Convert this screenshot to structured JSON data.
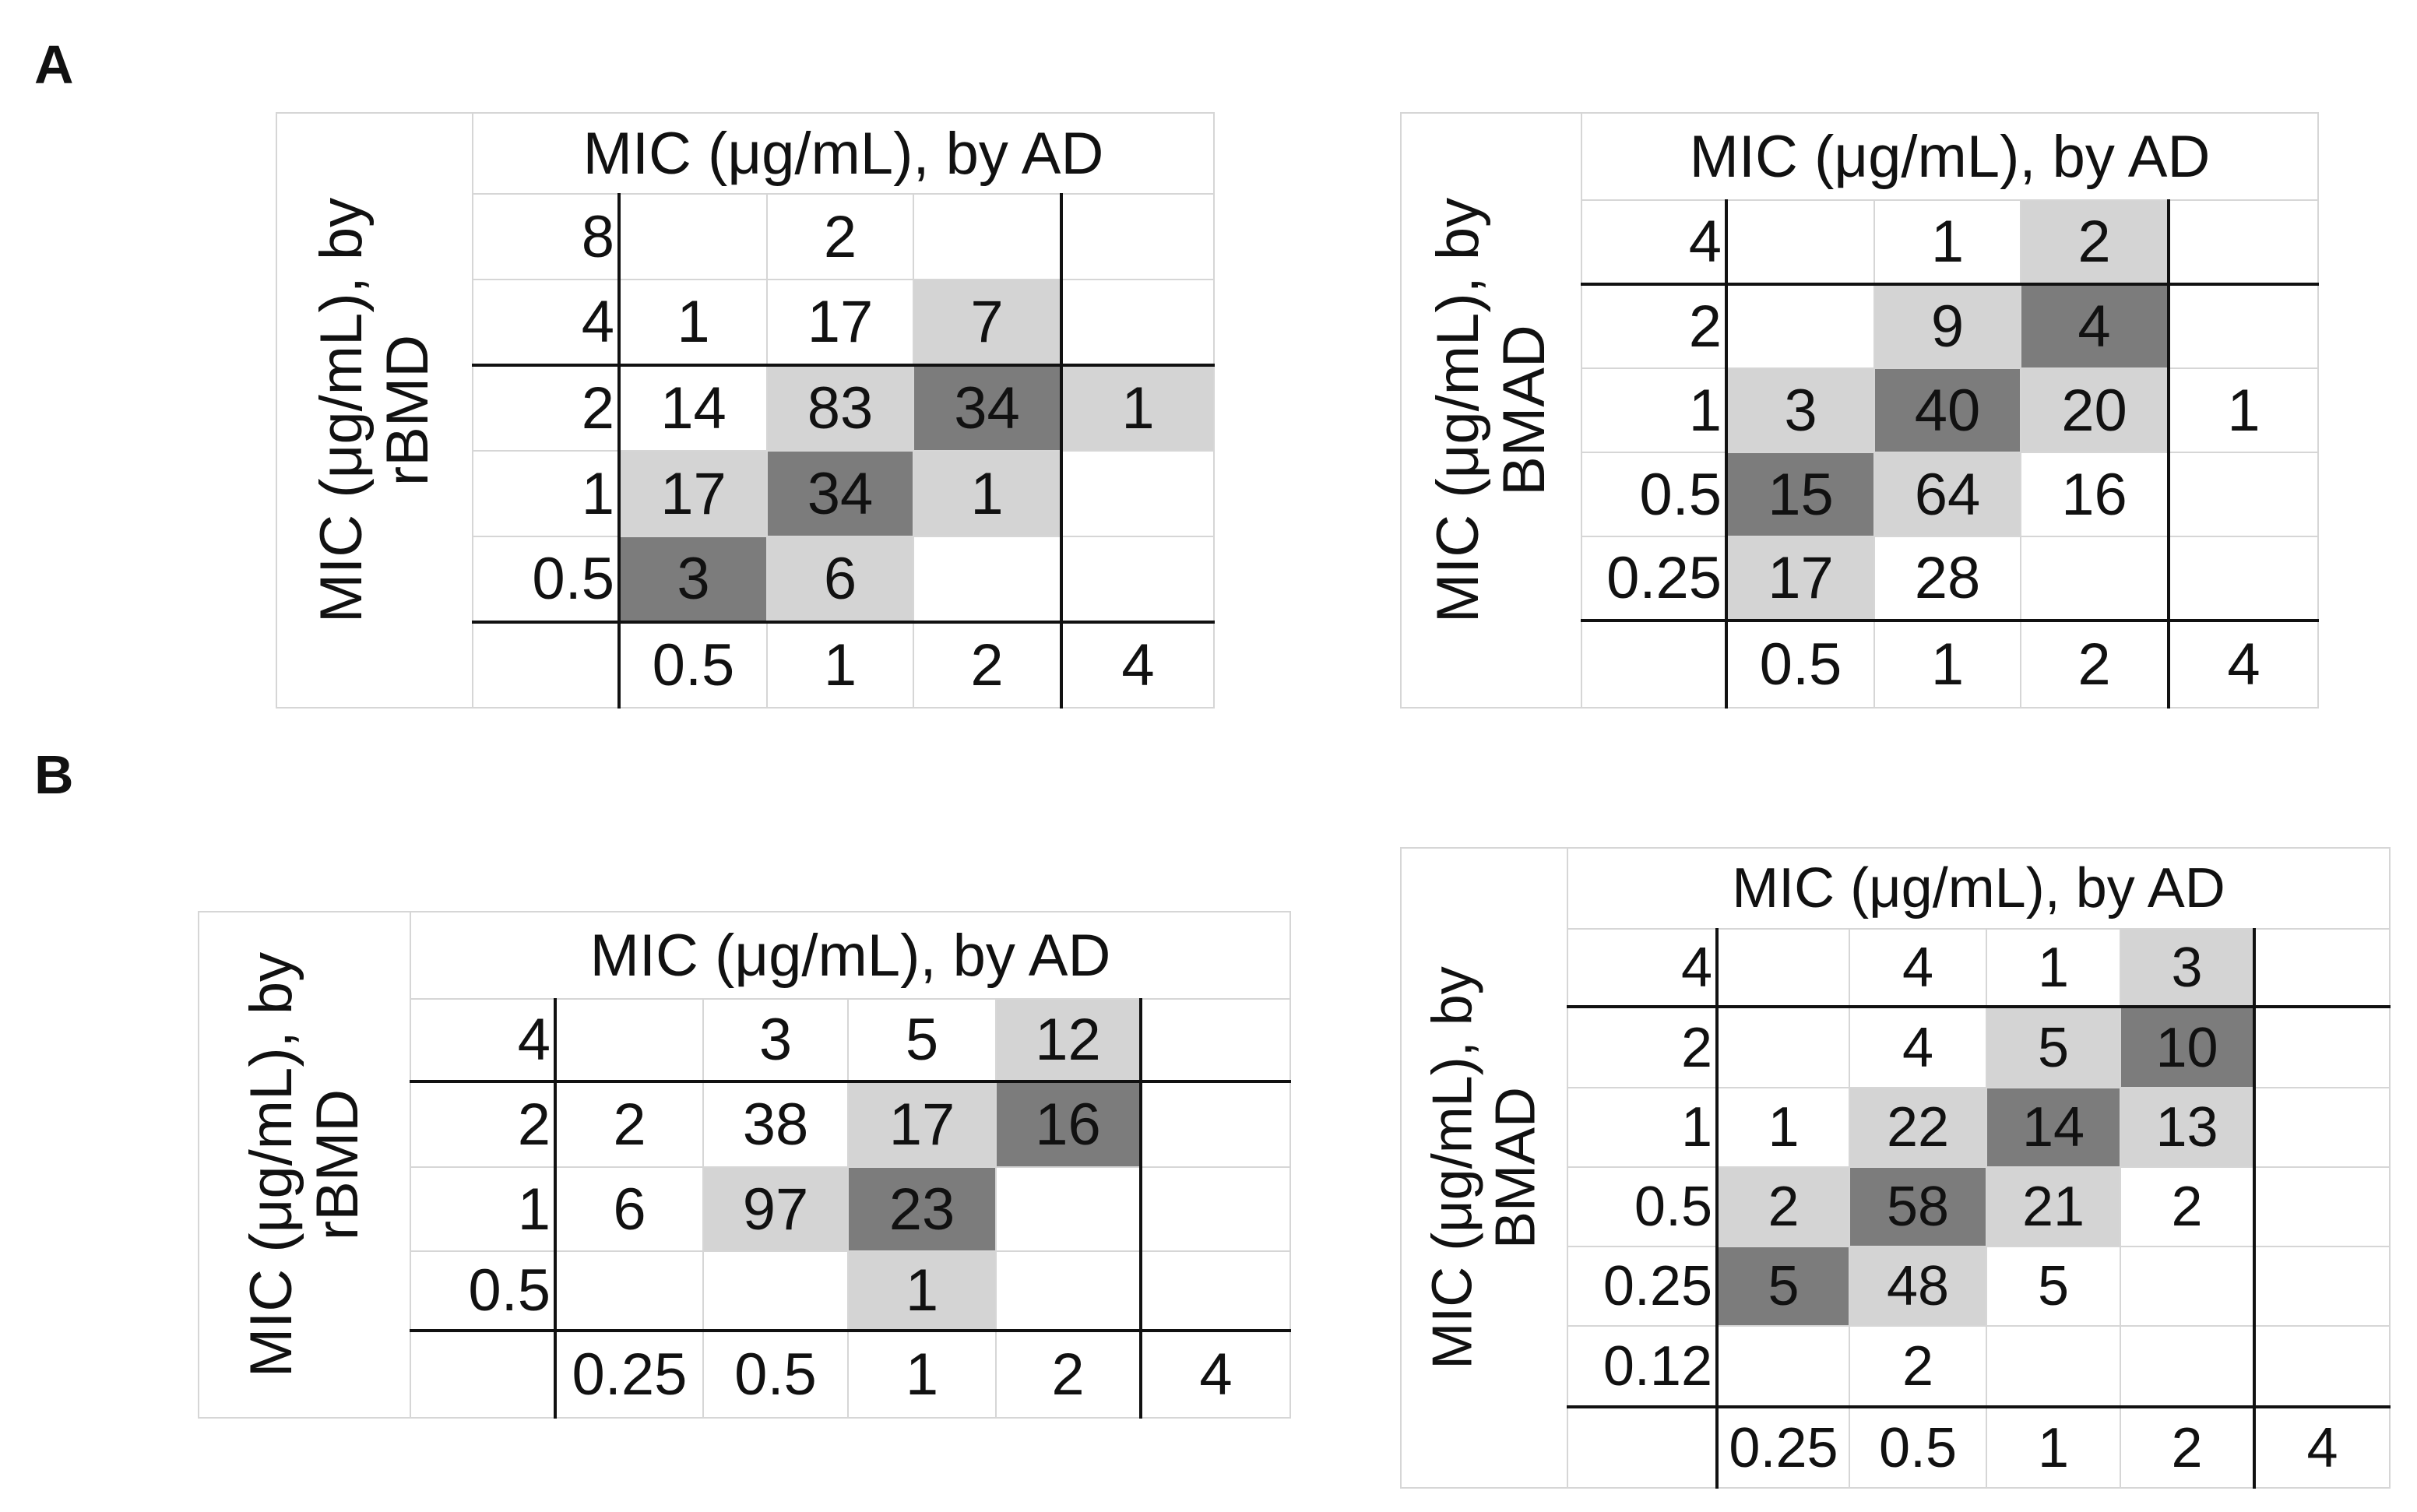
{
  "figure": {
    "panel_a": "A",
    "panel_b": "B",
    "colors": {
      "light_shade": "#d4d4d4",
      "dark_shade": "#7c7c7c",
      "grid": "#d6d6d6",
      "rule": "#111111"
    },
    "tables": [
      {
        "x_title": "MIC (μg/mL), by AD",
        "y_title": "MIC (μg/mL), by rBMD",
        "x_values": [
          "0.5",
          "1",
          "2",
          "4"
        ],
        "rows": [
          {
            "label": "8",
            "cells": [
              "",
              "2",
              "",
              ""
            ]
          },
          {
            "label": "4",
            "cells": [
              "1",
              "17",
              "7",
              ""
            ]
          },
          {
            "label": "2",
            "cells": [
              "14",
              "83",
              "34",
              "1"
            ]
          },
          {
            "label": "1",
            "cells": [
              "17",
              "34",
              "1",
              ""
            ]
          },
          {
            "label": "0.5",
            "cells": [
              "3",
              "6",
              "",
              ""
            ]
          }
        ]
      },
      {
        "x_title": "MIC (μg/mL), by AD",
        "y_title": "MIC (μg/mL), by BMAD",
        "x_values": [
          "0.5",
          "1",
          "2",
          "4"
        ],
        "rows": [
          {
            "label": "4",
            "cells": [
              "",
              "1",
              "2",
              ""
            ]
          },
          {
            "label": "2",
            "cells": [
              "",
              "9",
              "4",
              ""
            ]
          },
          {
            "label": "1",
            "cells": [
              "3",
              "40",
              "20",
              "1"
            ]
          },
          {
            "label": "0.5",
            "cells": [
              "15",
              "64",
              "16",
              ""
            ]
          },
          {
            "label": "0.25",
            "cells": [
              "17",
              "28",
              "",
              ""
            ]
          }
        ]
      },
      {
        "x_title": "MIC (μg/mL), by AD",
        "y_title": "MIC (μg/mL), by rBMD",
        "x_values": [
          "0.25",
          "0.5",
          "1",
          "2",
          "4"
        ],
        "rows": [
          {
            "label": "4",
            "cells": [
              "",
              "3",
              "5",
              "12",
              ""
            ]
          },
          {
            "label": "2",
            "cells": [
              "2",
              "38",
              "17",
              "16",
              ""
            ]
          },
          {
            "label": "1",
            "cells": [
              "6",
              "97",
              "23",
              "",
              ""
            ]
          },
          {
            "label": "0.5",
            "cells": [
              "",
              "",
              "1",
              "",
              ""
            ]
          }
        ]
      },
      {
        "x_title": "MIC (μg/mL), by AD",
        "y_title": "MIC (μg/mL), by BMAD",
        "x_values": [
          "0.25",
          "0.5",
          "1",
          "2",
          "4"
        ],
        "rows": [
          {
            "label": "4",
            "cells": [
              "",
              "4",
              "1",
              "3",
              ""
            ]
          },
          {
            "label": "2",
            "cells": [
              "",
              "4",
              "5",
              "10",
              ""
            ]
          },
          {
            "label": "1",
            "cells": [
              "1",
              "22",
              "14",
              "13",
              ""
            ]
          },
          {
            "label": "0.5",
            "cells": [
              "2",
              "58",
              "21",
              "2",
              ""
            ]
          },
          {
            "label": "0.25",
            "cells": [
              "5",
              "48",
              "5",
              "",
              ""
            ]
          },
          {
            "label": "0.12",
            "cells": [
              "",
              "2",
              "",
              "",
              ""
            ]
          }
        ]
      }
    ]
  }
}
